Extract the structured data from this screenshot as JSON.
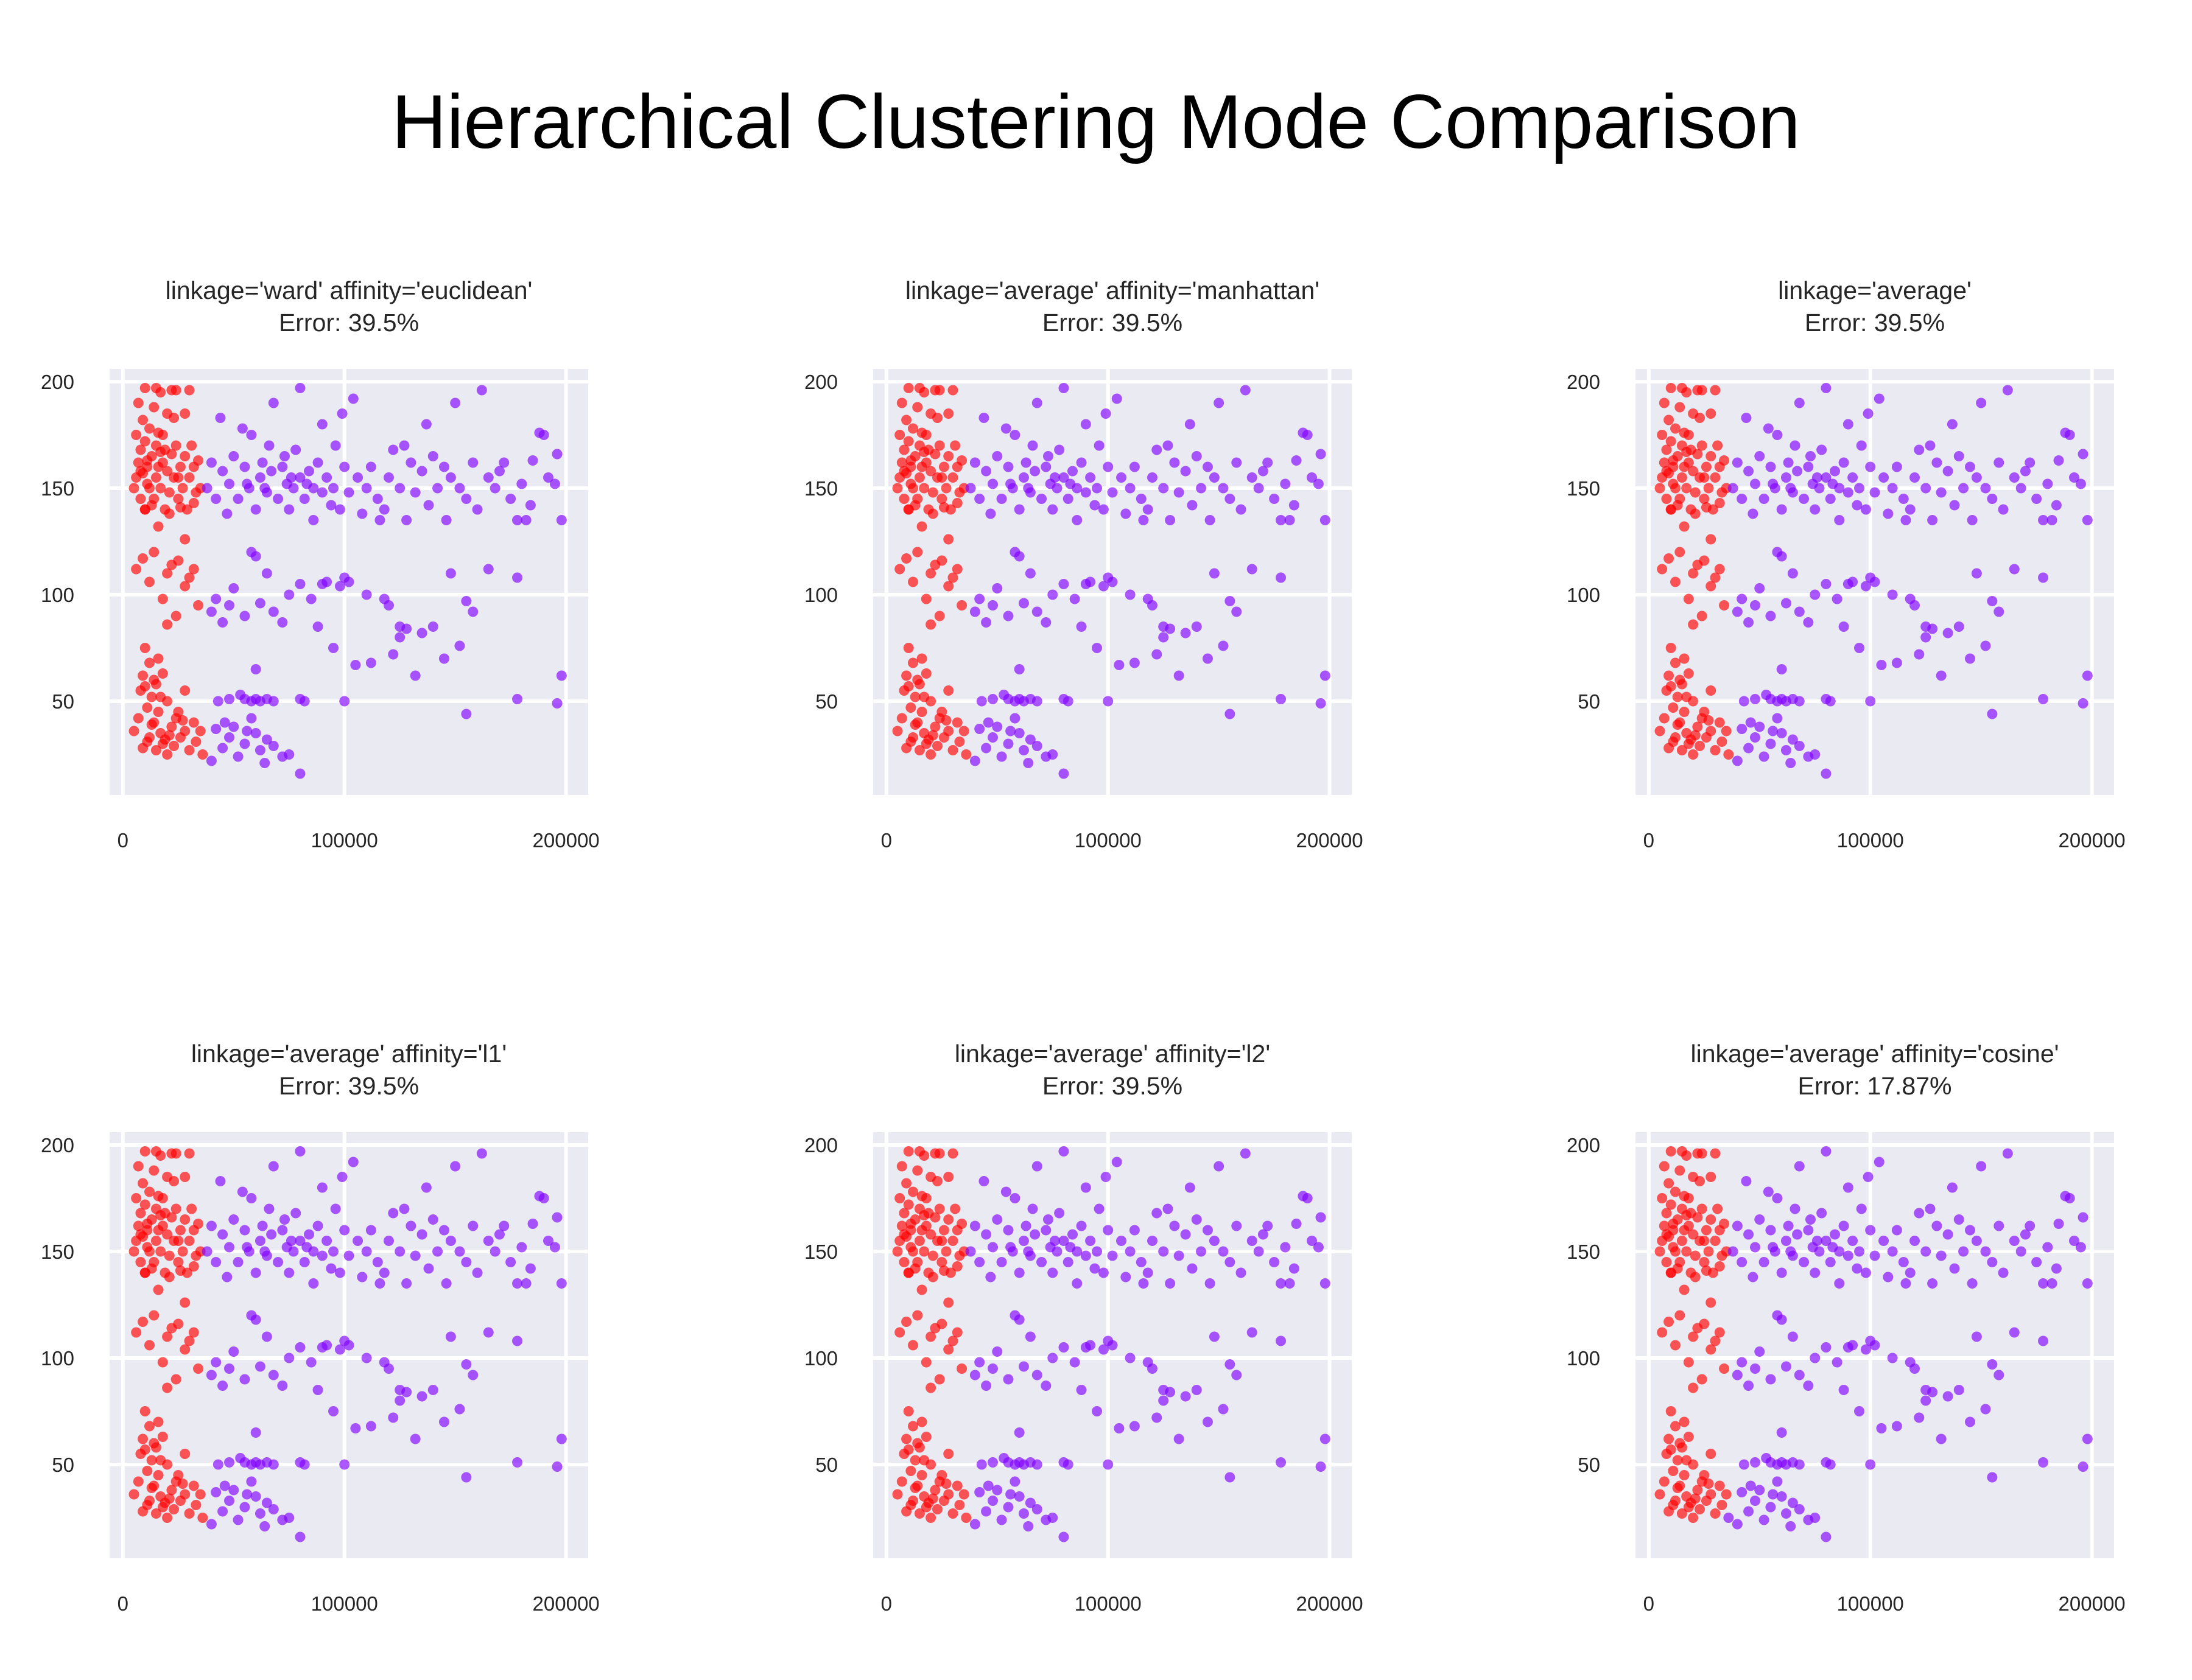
{
  "figure": {
    "title": "Hierarchical Clustering Mode Comparison"
  },
  "colors": {
    "cluster_red": "#ff0000",
    "cluster_purple": "#8000ff",
    "plot_bg": "#eaeaf2",
    "grid": "#ffffff",
    "text": "#262626"
  },
  "chart_data": [
    {
      "type": "scatter",
      "title": "linkage='ward' affinity='euclidean'",
      "subtitle": "Error: 39.5%",
      "xlabel": "",
      "ylabel": "",
      "xlim": [
        -6000,
        210000
      ],
      "ylim": [
        6,
        206
      ],
      "xticks": [
        0,
        100000,
        200000
      ],
      "yticks": [
        50,
        100,
        150,
        200
      ],
      "grid": true,
      "cosine": false
    },
    {
      "type": "scatter",
      "title": "linkage='average' affinity='manhattan'",
      "subtitle": "Error: 39.5%",
      "xlabel": "",
      "ylabel": "",
      "xlim": [
        -6000,
        210000
      ],
      "ylim": [
        6,
        206
      ],
      "xticks": [
        0,
        100000,
        200000
      ],
      "yticks": [
        50,
        100,
        150,
        200
      ],
      "grid": true,
      "cosine": false
    },
    {
      "type": "scatter",
      "title": "linkage='average'",
      "subtitle": "Error: 39.5%",
      "xlabel": "",
      "ylabel": "",
      "xlim": [
        -6000,
        210000
      ],
      "ylim": [
        6,
        206
      ],
      "xticks": [
        0,
        100000,
        200000
      ],
      "yticks": [
        50,
        100,
        150,
        200
      ],
      "grid": true,
      "cosine": false
    },
    {
      "type": "scatter",
      "title": "linkage='average' affinity='l1'",
      "subtitle": "Error: 39.5%",
      "xlabel": "",
      "ylabel": "",
      "xlim": [
        -6000,
        210000
      ],
      "ylim": [
        6,
        206
      ],
      "xticks": [
        0,
        100000,
        200000
      ],
      "yticks": [
        50,
        100,
        150,
        200
      ],
      "grid": true,
      "cosine": false
    },
    {
      "type": "scatter",
      "title": "linkage='average' affinity='l2'",
      "subtitle": "Error: 39.5%",
      "xlabel": "",
      "ylabel": "",
      "xlim": [
        -6000,
        210000
      ],
      "ylim": [
        6,
        206
      ],
      "xticks": [
        0,
        100000,
        200000
      ],
      "yticks": [
        50,
        100,
        150,
        200
      ],
      "grid": true,
      "cosine": false
    },
    {
      "type": "scatter",
      "title": "linkage='average' affinity='cosine'",
      "subtitle": "Error: 17.87%",
      "xlabel": "",
      "ylabel": "",
      "xlim": [
        -6000,
        210000
      ],
      "ylim": [
        6,
        206
      ],
      "xticks": [
        0,
        100000,
        200000
      ],
      "yticks": [
        50,
        100,
        150,
        200
      ],
      "grid": true,
      "cosine": true
    }
  ],
  "points": [
    [
      5000,
      36
    ],
    [
      7000,
      42
    ],
    [
      8000,
      55
    ],
    [
      9000,
      62
    ],
    [
      9000,
      28
    ],
    [
      10000,
      75
    ],
    [
      11000,
      47
    ],
    [
      12000,
      33
    ],
    [
      12000,
      68
    ],
    [
      13000,
      52
    ],
    [
      14000,
      40
    ],
    [
      15000,
      58
    ],
    [
      15000,
      27
    ],
    [
      16000,
      45
    ],
    [
      17000,
      35
    ],
    [
      18000,
      63
    ],
    [
      18000,
      30
    ],
    [
      20000,
      50
    ],
    [
      20000,
      25
    ],
    [
      22000,
      38
    ],
    [
      23000,
      29
    ],
    [
      24000,
      42
    ],
    [
      26000,
      33
    ],
    [
      28000,
      36
    ],
    [
      28000,
      55
    ],
    [
      30000,
      27
    ],
    [
      32000,
      40
    ],
    [
      33000,
      31
    ],
    [
      35000,
      36
    ],
    [
      36000,
      25
    ],
    [
      10000,
      57
    ],
    [
      13000,
      39
    ],
    [
      16000,
      70
    ],
    [
      19000,
      32
    ],
    [
      25000,
      45
    ],
    [
      14000,
      60
    ],
    [
      21000,
      34
    ],
    [
      11000,
      31
    ],
    [
      27000,
      41
    ],
    [
      17000,
      52
    ],
    [
      40000,
      22
    ],
    [
      42000,
      37
    ],
    [
      45000,
      28
    ],
    [
      48000,
      33
    ],
    [
      50000,
      38
    ],
    [
      52000,
      24
    ],
    [
      55000,
      30
    ],
    [
      58000,
      42
    ],
    [
      60000,
      35
    ],
    [
      62000,
      27
    ],
    [
      65000,
      32
    ],
    [
      68000,
      29
    ],
    [
      72000,
      24
    ],
    [
      75000,
      25
    ],
    [
      80000,
      16
    ],
    [
      46000,
      40
    ],
    [
      56000,
      36
    ],
    [
      64000,
      21
    ],
    [
      43000,
      50
    ],
    [
      48000,
      51
    ],
    [
      55000,
      51
    ],
    [
      58000,
      50
    ],
    [
      60000,
      51
    ],
    [
      62000,
      50
    ],
    [
      65000,
      51
    ],
    [
      68000,
      50
    ],
    [
      80000,
      51
    ],
    [
      82000,
      50
    ],
    [
      60000,
      65
    ],
    [
      53000,
      53
    ],
    [
      6000,
      112
    ],
    [
      9000,
      117
    ],
    [
      12000,
      106
    ],
    [
      14000,
      120
    ],
    [
      18000,
      98
    ],
    [
      20000,
      110
    ],
    [
      22000,
      114
    ],
    [
      25000,
      116
    ],
    [
      28000,
      104
    ],
    [
      30000,
      108
    ],
    [
      32000,
      112
    ],
    [
      34000,
      95
    ],
    [
      24000,
      90
    ],
    [
      16000,
      132
    ],
    [
      28000,
      126
    ],
    [
      10000,
      140
    ],
    [
      20000,
      86
    ],
    [
      40000,
      92
    ],
    [
      42000,
      98
    ],
    [
      45000,
      87
    ],
    [
      48000,
      95
    ],
    [
      50000,
      103
    ],
    [
      55000,
      90
    ],
    [
      58000,
      120
    ],
    [
      60000,
      118
    ],
    [
      62000,
      96
    ],
    [
      65000,
      110
    ],
    [
      68000,
      92
    ],
    [
      72000,
      87
    ],
    [
      75000,
      100
    ],
    [
      80000,
      105
    ],
    [
      85000,
      98
    ],
    [
      88000,
      85
    ],
    [
      90000,
      105
    ],
    [
      92000,
      106
    ],
    [
      95000,
      75
    ],
    [
      98000,
      104
    ],
    [
      100000,
      108
    ],
    [
      102000,
      106
    ],
    [
      105000,
      67
    ],
    [
      110000,
      100
    ],
    [
      112000,
      68
    ],
    [
      118000,
      98
    ],
    [
      120000,
      95
    ],
    [
      122000,
      72
    ],
    [
      125000,
      85
    ],
    [
      128000,
      84
    ],
    [
      132000,
      62
    ],
    [
      135000,
      82
    ],
    [
      140000,
      85
    ],
    [
      145000,
      70
    ],
    [
      148000,
      110
    ],
    [
      152000,
      76
    ],
    [
      155000,
      97
    ],
    [
      158000,
      92
    ],
    [
      165000,
      112
    ],
    [
      178000,
      108
    ],
    [
      198000,
      62
    ],
    [
      196000,
      49
    ],
    [
      178000,
      51
    ],
    [
      155000,
      44
    ],
    [
      125000,
      80
    ],
    [
      100000,
      50
    ],
    [
      5000,
      150
    ],
    [
      6000,
      155
    ],
    [
      7000,
      162
    ],
    [
      8000,
      145
    ],
    [
      8000,
      168
    ],
    [
      9000,
      157
    ],
    [
      10000,
      172
    ],
    [
      10000,
      140
    ],
    [
      11000,
      160
    ],
    [
      12000,
      150
    ],
    [
      12000,
      178
    ],
    [
      13000,
      165
    ],
    [
      14000,
      145
    ],
    [
      14000,
      188
    ],
    [
      15000,
      155
    ],
    [
      15000,
      170
    ],
    [
      16000,
      160
    ],
    [
      17000,
      150
    ],
    [
      17000,
      195
    ],
    [
      18000,
      162
    ],
    [
      18000,
      175
    ],
    [
      19000,
      140
    ],
    [
      20000,
      158
    ],
    [
      20000,
      185
    ],
    [
      21000,
      148
    ],
    [
      22000,
      166
    ],
    [
      22000,
      196
    ],
    [
      23000,
      155
    ],
    [
      24000,
      170
    ],
    [
      25000,
      145
    ],
    [
      26000,
      160
    ],
    [
      27000,
      150
    ],
    [
      28000,
      185
    ],
    [
      28000,
      165
    ],
    [
      29000,
      140
    ],
    [
      30000,
      155
    ],
    [
      30000,
      196
    ],
    [
      31000,
      170
    ],
    [
      32000,
      160
    ],
    [
      33000,
      148
    ],
    [
      34000,
      163
    ],
    [
      35000,
      150
    ],
    [
      9000,
      182
    ],
    [
      11000,
      152
    ],
    [
      13000,
      142
    ],
    [
      16000,
      176
    ],
    [
      19000,
      168
    ],
    [
      21000,
      138
    ],
    [
      23000,
      183
    ],
    [
      26000,
      141
    ],
    [
      6000,
      175
    ],
    [
      7000,
      190
    ],
    [
      10000,
      197
    ],
    [
      15000,
      197
    ],
    [
      24000,
      196
    ],
    [
      11000,
      163
    ],
    [
      17000,
      167
    ],
    [
      25000,
      155
    ],
    [
      32000,
      143
    ],
    [
      8000,
      158
    ],
    [
      38000,
      150
    ],
    [
      40000,
      162
    ],
    [
      42000,
      145
    ],
    [
      45000,
      158
    ],
    [
      47000,
      138
    ],
    [
      48000,
      152
    ],
    [
      50000,
      165
    ],
    [
      52000,
      145
    ],
    [
      55000,
      160
    ],
    [
      57000,
      150
    ],
    [
      58000,
      175
    ],
    [
      60000,
      140
    ],
    [
      62000,
      155
    ],
    [
      63000,
      162
    ],
    [
      65000,
      148
    ],
    [
      67000,
      158
    ],
    [
      68000,
      190
    ],
    [
      70000,
      145
    ],
    [
      72000,
      160
    ],
    [
      74000,
      152
    ],
    [
      75000,
      140
    ],
    [
      77000,
      150
    ],
    [
      78000,
      168
    ],
    [
      80000,
      155
    ],
    [
      80000,
      197
    ],
    [
      82000,
      145
    ],
    [
      84000,
      158
    ],
    [
      86000,
      150
    ],
    [
      88000,
      162
    ],
    [
      90000,
      148
    ],
    [
      90000,
      180
    ],
    [
      92000,
      155
    ],
    [
      95000,
      150
    ],
    [
      96000,
      170
    ],
    [
      98000,
      140
    ],
    [
      100000,
      160
    ],
    [
      102000,
      148
    ],
    [
      104000,
      192
    ],
    [
      106000,
      155
    ],
    [
      108000,
      138
    ],
    [
      110000,
      150
    ],
    [
      112000,
      160
    ],
    [
      115000,
      145
    ],
    [
      118000,
      140
    ],
    [
      120000,
      155
    ],
    [
      122000,
      168
    ],
    [
      125000,
      150
    ],
    [
      128000,
      135
    ],
    [
      130000,
      162
    ],
    [
      132000,
      148
    ],
    [
      135000,
      158
    ],
    [
      138000,
      142
    ],
    [
      140000,
      165
    ],
    [
      142000,
      150
    ],
    [
      145000,
      160
    ],
    [
      148000,
      155
    ],
    [
      150000,
      190
    ],
    [
      152000,
      150
    ],
    [
      155000,
      145
    ],
    [
      158000,
      162
    ],
    [
      162000,
      196
    ],
    [
      165000,
      155
    ],
    [
      168000,
      150
    ],
    [
      170000,
      158
    ],
    [
      175000,
      145
    ],
    [
      178000,
      135
    ],
    [
      180000,
      152
    ],
    [
      182000,
      135
    ],
    [
      185000,
      163
    ],
    [
      188000,
      176
    ],
    [
      190000,
      175
    ],
    [
      192000,
      155
    ],
    [
      195000,
      152
    ],
    [
      196000,
      166
    ],
    [
      198000,
      135
    ],
    [
      44000,
      183
    ],
    [
      54000,
      178
    ],
    [
      66000,
      170
    ],
    [
      73000,
      165
    ],
    [
      86000,
      135
    ],
    [
      99000,
      185
    ],
    [
      116000,
      135
    ],
    [
      127000,
      170
    ],
    [
      137000,
      180
    ],
    [
      146000,
      135
    ],
    [
      160000,
      140
    ],
    [
      172000,
      162
    ],
    [
      184000,
      142
    ],
    [
      94000,
      142
    ],
    [
      56000,
      152
    ],
    [
      64000,
      150
    ],
    [
      76000,
      155
    ],
    [
      83000,
      152
    ]
  ]
}
